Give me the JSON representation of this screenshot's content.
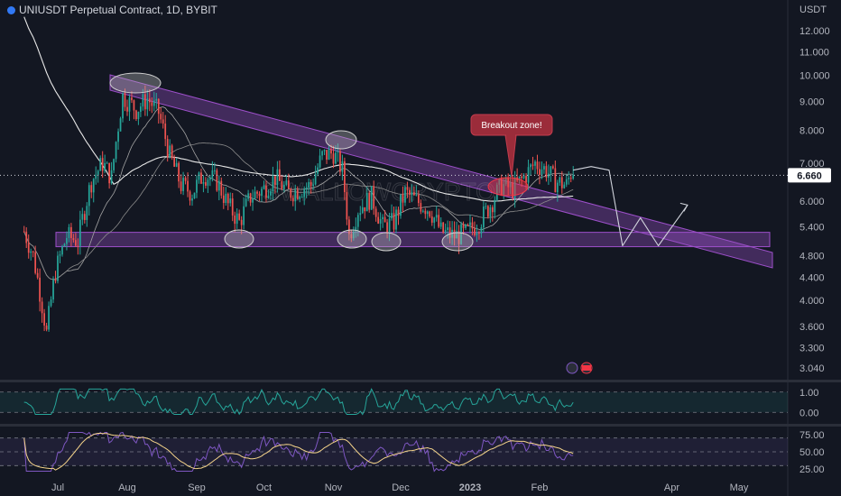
{
  "header": {
    "title": "UNIUSDT Perpetual Contract, 1D, BYBIT"
  },
  "chart_data": [
    {
      "type": "candlestick",
      "currency": "USDT",
      "last_price": "6.660",
      "ylim": [
        2.9,
        13.0
      ],
      "y_scale": "log",
      "y_ticks": [
        "12.000",
        "11.000",
        "10.000",
        "9.000",
        "8.000",
        "7.000",
        "6.000",
        "5.400",
        "4.800",
        "4.400",
        "4.000",
        "3.600",
        "3.300",
        "3.040"
      ],
      "x_ticks": [
        "Jul",
        "Aug",
        "Sep",
        "Oct",
        "Nov",
        "Dec",
        "2023",
        "Feb",
        "Apr",
        "May"
      ],
      "annotations": [
        {
          "type": "callout",
          "text": "Breakout zone!"
        }
      ],
      "watermark": "SWALLOWCRYPTO",
      "colors": {
        "up": "#26a69a",
        "down": "#ef5350",
        "channel": "#9c4fc9",
        "ma_long": "#e8e8e8",
        "ma_short": "#a4a4a4",
        "callout": "#9b2c3a"
      },
      "price_path": [
        [
          "2022-06-16",
          5.3
        ],
        [
          "2022-06-20",
          4.8
        ],
        [
          "2022-06-26",
          3.5
        ],
        [
          "2022-06-30",
          4.5
        ],
        [
          "2022-07-05",
          5.2
        ],
        [
          "2022-07-10",
          5.1
        ],
        [
          "2022-07-16",
          6.5
        ],
        [
          "2022-07-21",
          7.0
        ],
        [
          "2022-07-25",
          6.6
        ],
        [
          "2022-07-30",
          9.2
        ],
        [
          "2022-08-05",
          8.7
        ],
        [
          "2022-08-10",
          9.1
        ],
        [
          "2022-08-15",
          8.6
        ],
        [
          "2022-08-20",
          7.2
        ],
        [
          "2022-08-25",
          6.4
        ],
        [
          "2022-08-30",
          6.2
        ],
        [
          "2022-09-04",
          6.7
        ],
        [
          "2022-09-10",
          6.5
        ],
        [
          "2022-09-15",
          5.9
        ],
        [
          "2022-09-20",
          5.5
        ],
        [
          "2022-09-25",
          6.1
        ],
        [
          "2022-10-01",
          6.3
        ],
        [
          "2022-10-06",
          6.6
        ],
        [
          "2022-10-12",
          6.2
        ],
        [
          "2022-10-17",
          6.3
        ],
        [
          "2022-10-22",
          6.4
        ],
        [
          "2022-10-27",
          7.2
        ],
        [
          "2022-11-01",
          7.3
        ],
        [
          "2022-11-05",
          6.8
        ],
        [
          "2022-11-08",
          5.2
        ],
        [
          "2022-11-12",
          5.8
        ],
        [
          "2022-11-18",
          6.1
        ],
        [
          "2022-11-23",
          5.4
        ],
        [
          "2022-11-28",
          5.5
        ],
        [
          "2022-12-03",
          6.2
        ],
        [
          "2022-12-08",
          6.0
        ],
        [
          "2022-12-14",
          5.8
        ],
        [
          "2022-12-19",
          5.3
        ],
        [
          "2022-12-25",
          5.2
        ],
        [
          "2022-12-30",
          5.25
        ],
        [
          "2023-01-05",
          5.5
        ],
        [
          "2023-01-10",
          5.9
        ],
        [
          "2023-01-15",
          6.4
        ],
        [
          "2023-01-20",
          6.3
        ],
        [
          "2023-01-25",
          6.6
        ],
        [
          "2023-01-30",
          7.0
        ],
        [
          "2023-02-04",
          6.8
        ],
        [
          "2023-02-08",
          6.5
        ],
        [
          "2023-02-13",
          6.4
        ],
        [
          "2023-02-16",
          6.9
        ]
      ],
      "projection_path": [
        [
          "2023-02-16",
          6.8
        ],
        [
          "2023-02-24",
          6.9
        ],
        [
          "2023-03-04",
          6.8
        ],
        [
          "2023-03-10",
          5.0
        ],
        [
          "2023-03-18",
          5.6
        ],
        [
          "2023-03-26",
          5.0
        ],
        [
          "2023-04-08",
          5.9
        ]
      ]
    },
    {
      "type": "line",
      "name": "oscillator-1",
      "y_ticks": [
        "1.00",
        "0.00"
      ],
      "ylim": [
        -0.3,
        1.3
      ]
    },
    {
      "type": "line",
      "name": "oscillator-2",
      "y_ticks": [
        "75.00",
        "50.00",
        "25.00"
      ],
      "ylim": [
        20,
        80
      ]
    }
  ]
}
